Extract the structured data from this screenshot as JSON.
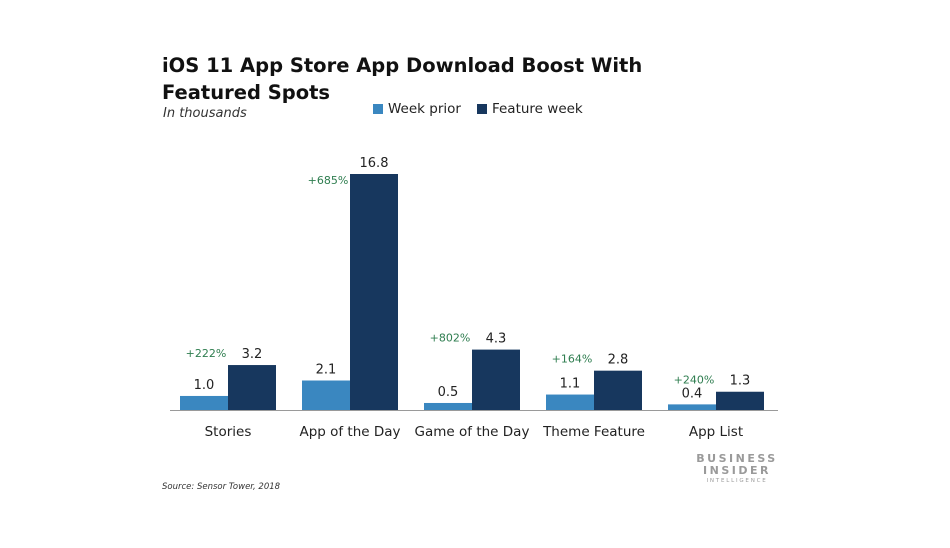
{
  "title": "iOS 11 App Store App Download Boost With Featured Spots",
  "subtitle": "In thousands",
  "source": "Source: Sensor Tower, 2018",
  "logo": {
    "line1": "BUSINESS",
    "line2": "INSIDER",
    "line3": "INTELLIGENCE"
  },
  "colors": {
    "week_prior": "#3a87c0",
    "feature_week": "#17375e",
    "growth_label": "#2e7d4f",
    "axis": "#9a9a9a"
  },
  "chart_data": {
    "type": "bar",
    "title": "iOS 11 App Store App Download Boost With Featured Spots",
    "subtitle": "In thousands",
    "categories": [
      "Stories",
      "App of the Day",
      "Game of the Day",
      "Theme Feature",
      "App List"
    ],
    "series": [
      {
        "name": "Week prior",
        "values": [
          1.0,
          2.1,
          0.5,
          1.1,
          0.4
        ],
        "labels": [
          "1.0",
          "2.1",
          "0.5",
          "1.1",
          "0.4"
        ]
      },
      {
        "name": "Feature week",
        "values": [
          3.2,
          16.8,
          4.3,
          2.8,
          1.3
        ],
        "labels": [
          "3.2",
          "16.8",
          "4.3",
          "2.8",
          "1.3"
        ]
      }
    ],
    "growth_labels": [
      "+222%",
      "+685%",
      "+802%",
      "+164%",
      "+240%"
    ],
    "ylim": [
      0,
      16.8
    ],
    "legend_position": "top",
    "grid": false
  }
}
